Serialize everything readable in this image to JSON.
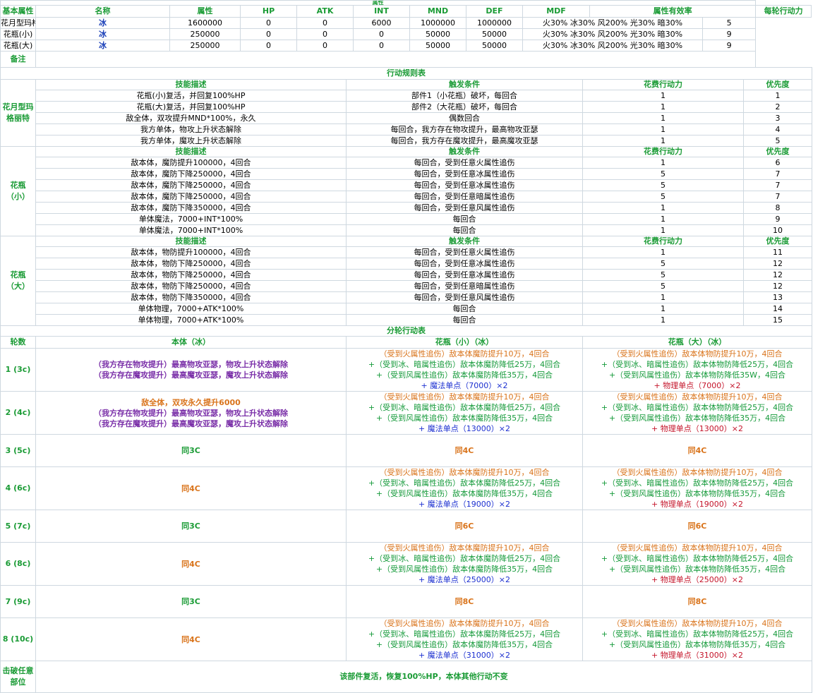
{
  "top_title": "属性",
  "basic": {
    "label": "基本属性",
    "headers": [
      "名称",
      "属性",
      "HP",
      "ATK",
      "INT",
      "MND",
      "DEF",
      "MDF",
      "属性有效率",
      "每轮行动力"
    ],
    "rows": [
      {
        "name": "花月型玛格丽特",
        "attr": "冰",
        "hp": "1600000",
        "atk": "0",
        "int": "0",
        "mnd": "6000",
        "def": "1000000",
        "mdf": "1000000",
        "eff": "火30% 冰30% 风200% 光30% 暗30%",
        "ap": "5"
      },
      {
        "name": "花瓶(小)",
        "attr": "冰",
        "hp": "250000",
        "atk": "0",
        "int": "0",
        "mnd": "0",
        "def": "50000",
        "mdf": "50000",
        "eff": "火30% 冰30% 风200% 光30% 暗30%",
        "ap": "9"
      },
      {
        "name": "花瓶(大)",
        "attr": "冰",
        "hp": "250000",
        "atk": "0",
        "int": "0",
        "mnd": "0",
        "def": "50000",
        "mdf": "50000",
        "eff": "火30% 冰30% 风200% 光30% 暗30%",
        "ap": "9"
      }
    ]
  },
  "note_label": "备注",
  "rules_title": "行动规则表",
  "rule_headers": [
    "技能描述",
    "触发条件",
    "花费行动力",
    "优先度"
  ],
  "rule_groups": [
    {
      "label": "花月型玛格丽特",
      "rows": [
        [
          "花瓶(小)复活，并回复100%HP",
          "部件1（小花瓶）破坏，每回合",
          "1",
          "1"
        ],
        [
          "花瓶(大)复活，并回复100%HP",
          "部件2（大花瓶）破坏，每回合",
          "1",
          "2"
        ],
        [
          "敌全体，双攻提升MND*100%，永久",
          "偶数回合",
          "1",
          "3"
        ],
        [
          "我方单体，物攻上升状态解除",
          "每回合，我方存在物攻提升，最高物攻亚瑟",
          "1",
          "4"
        ],
        [
          "我方单体，魔攻上升状态解除",
          "每回合，我方存在魔攻提升，最高魔攻亚瑟",
          "1",
          "5"
        ]
      ]
    },
    {
      "label": "花瓶（小）",
      "rows": [
        [
          "敌本体，魔防提升100000，4回合",
          "每回合，受到任意火属性追伤",
          "1",
          "6"
        ],
        [
          "敌本体，魔防下降250000，4回合",
          "每回合，受到任意冰属性追伤",
          "5",
          "7"
        ],
        [
          "敌本体，魔防下降250000，4回合",
          "每回合，受到任意冰属性追伤",
          "5",
          "7"
        ],
        [
          "敌本体，魔防下降250000，4回合",
          "每回合，受到任意暗属性追伤",
          "5",
          "7"
        ],
        [
          "敌本体，魔防下降350000，4回合",
          "每回合，受到任意风属性追伤",
          "1",
          "8"
        ],
        [
          "单体魔法，7000+INT*100%",
          "每回合",
          "1",
          "9"
        ],
        [
          "单体魔法，7000+INT*100%",
          "每回合",
          "1",
          "10"
        ]
      ]
    },
    {
      "label": "花瓶（大）",
      "rows": [
        [
          "敌本体，物防提升100000，4回合",
          "每回合，受到任意火属性追伤",
          "1",
          "11"
        ],
        [
          "敌本体，物防下降250000，4回合",
          "每回合，受到任意冰属性追伤",
          "5",
          "12"
        ],
        [
          "敌本体，物防下降250000，4回合",
          "每回合，受到任意冰属性追伤",
          "5",
          "12"
        ],
        [
          "敌本体，物防下降250000，4回合",
          "每回合，受到任意暗属性追伤",
          "5",
          "12"
        ],
        [
          "敌本体，物防下降350000，4回合",
          "每回合，受到任意风属性追伤",
          "1",
          "13"
        ],
        [
          "单体物理，7000+ATK*100%",
          "每回合",
          "1",
          "14"
        ],
        [
          "单体物理，7000+ATK*100%",
          "每回合",
          "1",
          "15"
        ]
      ]
    }
  ],
  "turn_title": "分轮行动表",
  "turn_headers": [
    "轮数",
    "本体（冰）",
    "花瓶（小）（冰）",
    "花瓶（大）（冰）"
  ],
  "turns": [
    {
      "label": "1 (3c)",
      "main": [
        {
          "t": "（我方存在物攻提升）最高物攻亚瑟，物攻上升状态解除",
          "c": "purple"
        },
        {
          "t": "（我方存在魔攻提升）最高魔攻亚瑟，魔攻上升状态解除",
          "c": "purple"
        }
      ],
      "small": [
        {
          "t": "（受到火属性追伤）敌本体魔防提升10万，4回合",
          "c": "orange"
        },
        {
          "t": "+（受到冰、暗属性追伤）敌本体魔防降低25万，4回合",
          "c": "green"
        },
        {
          "t": "+（受到风属性追伤）敌本体魔防降低35万，4回合",
          "c": "green"
        },
        {
          "t": "+ 魔法单点（7000）×2",
          "c": "blue"
        }
      ],
      "big": [
        {
          "t": "（受到火属性追伤）敌本体物防提升10万，4回合",
          "c": "orange"
        },
        {
          "t": "+（受到冰、暗属性追伤）敌本体物防降低25万，4回合",
          "c": "green"
        },
        {
          "t": "+（受到风属性追伤）敌本体物防降低35W，4回合",
          "c": "green"
        },
        {
          "t": "+ 物理单点（7000）×2",
          "c": "red"
        }
      ]
    },
    {
      "label": "2 (4c)",
      "main": [
        {
          "t": "敌全体，双攻永久提升6000",
          "c": "orangeb"
        },
        {
          "t": "（我方存在物攻提升）最高物攻亚瑟，物攻上升状态解除",
          "c": "purple"
        },
        {
          "t": "（我方存在魔攻提升）最高魔攻亚瑟，魔攻上升状态解除",
          "c": "purple"
        }
      ],
      "small": [
        {
          "t": "（受到火属性追伤）敌本体魔防提升10万，4回合",
          "c": "orange"
        },
        {
          "t": "+（受到冰、暗属性追伤）敌本体魔防降低25万，4回合",
          "c": "green"
        },
        {
          "t": "+（受到风属性追伤）敌本体魔防降低35万，4回合",
          "c": "green"
        },
        {
          "t": "+ 魔法单点（13000）×2",
          "c": "blue"
        }
      ],
      "big": [
        {
          "t": "（受到火属性追伤）敌本体物防提升10万，4回合",
          "c": "orange"
        },
        {
          "t": "+（受到冰、暗属性追伤）敌本体物防降低25万，4回合",
          "c": "green"
        },
        {
          "t": "+（受到风属性追伤）敌本体物防降低35万，4回合",
          "c": "green"
        },
        {
          "t": "+ 物理单点（13000）×2",
          "c": "red"
        }
      ]
    },
    {
      "label": "3 (5c)",
      "main": [
        {
          "t": "同3C",
          "c": "same3"
        }
      ],
      "small": [
        {
          "t": "同4C",
          "c": "same"
        }
      ],
      "big": [
        {
          "t": "同4C",
          "c": "same"
        }
      ]
    },
    {
      "label": "4 (6c)",
      "main": [
        {
          "t": "同4C",
          "c": "same"
        }
      ],
      "small": [
        {
          "t": "（受到火属性追伤）敌本体魔防提升10万，4回合",
          "c": "orange"
        },
        {
          "t": "+（受到冰、暗属性追伤）敌本体魔防降低25万，4回合",
          "c": "green"
        },
        {
          "t": "+（受到风属性追伤）敌本体魔防降低35万，4回合",
          "c": "green"
        },
        {
          "t": "+ 魔法单点（19000）×2",
          "c": "blue"
        }
      ],
      "big": [
        {
          "t": "（受到火属性追伤）敌本体物防提升10万，4回合",
          "c": "orange"
        },
        {
          "t": "+（受到冰、暗属性追伤）敌本体物防降低25万，4回合",
          "c": "green"
        },
        {
          "t": "+（受到风属性追伤）敌本体物防降低35万，4回合",
          "c": "green"
        },
        {
          "t": "+ 物理单点（19000）×2",
          "c": "red"
        }
      ]
    },
    {
      "label": "5 (7c)",
      "main": [
        {
          "t": "同3C",
          "c": "same3"
        }
      ],
      "small": [
        {
          "t": "同6C",
          "c": "same"
        }
      ],
      "big": [
        {
          "t": "同6C",
          "c": "same"
        }
      ]
    },
    {
      "label": "6 (8c)",
      "main": [
        {
          "t": "同4C",
          "c": "same"
        }
      ],
      "small": [
        {
          "t": "（受到火属性追伤）敌本体魔防提升10万，4回合",
          "c": "orange"
        },
        {
          "t": "+（受到冰、暗属性追伤）敌本体魔防降低25万，4回合",
          "c": "green"
        },
        {
          "t": "+（受到风属性追伤）敌本体魔防降低35万，4回合",
          "c": "green"
        },
        {
          "t": "+ 魔法单点（25000）×2",
          "c": "blue"
        }
      ],
      "big": [
        {
          "t": "（受到火属性追伤）敌本体物防提升10万，4回合",
          "c": "orange"
        },
        {
          "t": "+（受到冰、暗属性追伤）敌本体物防降低25万，4回合",
          "c": "green"
        },
        {
          "t": "+（受到风属性追伤）敌本体物防降低35万，4回合",
          "c": "green"
        },
        {
          "t": "+ 物理单点（25000）×2",
          "c": "red"
        }
      ]
    },
    {
      "label": "7 (9c)",
      "main": [
        {
          "t": "同3C",
          "c": "same3"
        }
      ],
      "small": [
        {
          "t": "同8C",
          "c": "same"
        }
      ],
      "big": [
        {
          "t": "同8C",
          "c": "same"
        }
      ]
    },
    {
      "label": "8 (10c)",
      "main": [
        {
          "t": "同4C",
          "c": "same"
        }
      ],
      "small": [
        {
          "t": "（受到火属性追伤）敌本体魔防提升10万，4回合",
          "c": "orange"
        },
        {
          "t": "+（受到冰、暗属性追伤）敌本体魔防降低25万，4回合",
          "c": "green"
        },
        {
          "t": "+（受到风属性追伤）敌本体魔防降低35万，4回合",
          "c": "green"
        },
        {
          "t": "+ 魔法单点（31000）×2",
          "c": "blue"
        }
      ],
      "big": [
        {
          "t": "（受到火属性追伤）敌本体物防提升10万，4回合",
          "c": "orange"
        },
        {
          "t": "+（受到冰、暗属性追伤）敌本体物防降低25万，4回合",
          "c": "green"
        },
        {
          "t": "+（受到风属性追伤）敌本体物防降低35万，4回合",
          "c": "green"
        },
        {
          "t": "+ 物理单点（31000）×2",
          "c": "red"
        }
      ]
    }
  ],
  "break_label": "击破任意部位",
  "break_text": "该部件复活，恢复100%HP，本体其他行动不变"
}
